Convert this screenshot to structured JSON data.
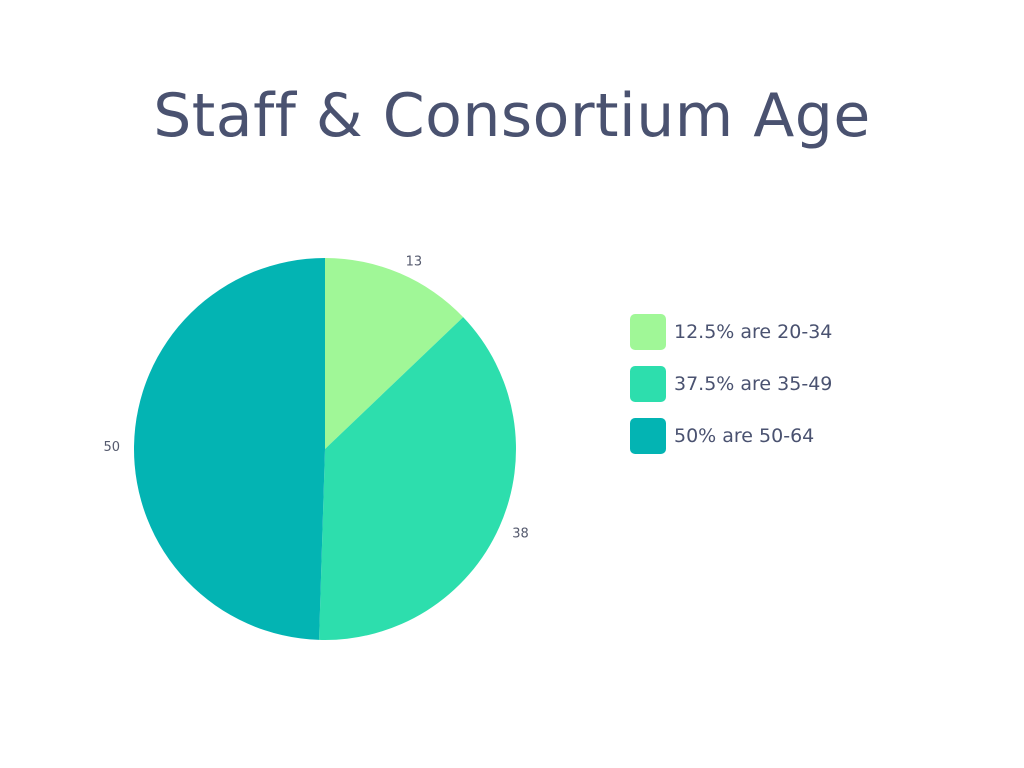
{
  "chart_data": {
    "type": "pie",
    "title": "Staff & Consortium Age",
    "slices": [
      {
        "label": "12.5% are 20-34",
        "value": 13,
        "value_label": "13",
        "color": "#a0f797"
      },
      {
        "label": "37.5% are 35-49",
        "value": 38,
        "value_label": "38",
        "color": "#2ddead"
      },
      {
        "label": "50% are 50-64",
        "value": 50,
        "value_label": "50",
        "color": "#03b4b3"
      }
    ],
    "legend_position": "right",
    "start_angle_deg": 0,
    "direction": "clockwise"
  }
}
